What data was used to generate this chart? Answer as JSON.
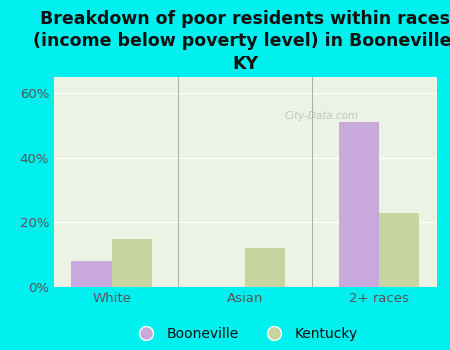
{
  "title": "Breakdown of poor residents within races\n(income below poverty level) in Booneville,\nKY",
  "categories": [
    "White",
    "Asian",
    "2+ races"
  ],
  "booneville_values": [
    8.0,
    0.0,
    51.0
  ],
  "kentucky_values": [
    15.0,
    12.0,
    23.0
  ],
  "booneville_color": "#c9a8dc",
  "kentucky_color": "#c8d4a0",
  "background_color": "#00f0f0",
  "plot_bg_color_topleft": "#e0edd8",
  "plot_bg_color_bottomright": "#f5f8f0",
  "ylim": [
    0,
    65
  ],
  "yticks": [
    0,
    20,
    40,
    60
  ],
  "ytick_labels": [
    "0%",
    "20%",
    "40%",
    "60%"
  ],
  "bar_width": 0.3,
  "title_fontsize": 12.5,
  "tick_fontsize": 9.5,
  "legend_fontsize": 10,
  "watermark": "City-Data.com",
  "title_color": "#111111",
  "tick_color": "#555555",
  "grid_color": "#ffffff",
  "separator_color": "#aaaaaa"
}
